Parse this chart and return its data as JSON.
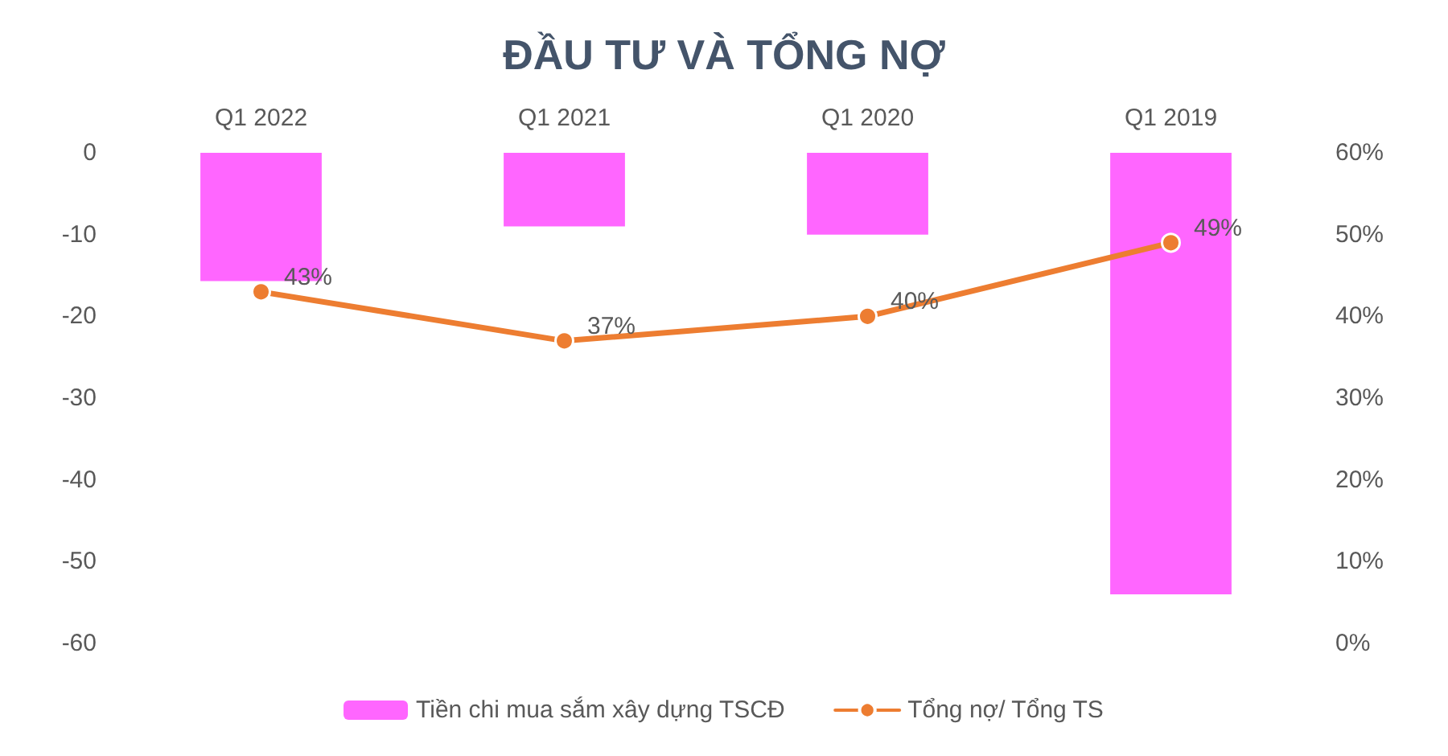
{
  "chart_data": {
    "type": "bar",
    "title": "ĐẦU TƯ VÀ TỔNG NỢ",
    "categories": [
      "Q1 2022",
      "Q1 2021",
      "Q1 2020",
      "Q1 2019"
    ],
    "series": [
      {
        "name": "Tiền chi mua sắm xây dựng TSCĐ",
        "color": "#ff66ff",
        "values": [
          -15.7,
          -9,
          -10,
          -54
        ]
      },
      {
        "name": "Tổng nợ/ Tổng TS",
        "type": "line",
        "axis": "y2",
        "color": "#ed7d31",
        "values": [
          43,
          37,
          40,
          49
        ],
        "value_labels": [
          "43%",
          "37%",
          "40%",
          "49%"
        ]
      }
    ],
    "ylim": [
      -60,
      0
    ],
    "yticks": [
      -60,
      -50,
      -40,
      -30,
      -20,
      -10,
      0
    ],
    "y2lim": [
      0,
      60
    ],
    "y2ticks": [
      {
        "value": 0,
        "label": "0%"
      },
      {
        "value": 10,
        "label": "10%"
      },
      {
        "value": 20,
        "label": "20%"
      },
      {
        "value": 30,
        "label": "30%"
      },
      {
        "value": 40,
        "label": "40%"
      },
      {
        "value": 50,
        "label": "50%"
      },
      {
        "value": 60,
        "label": "60%"
      }
    ],
    "grid": false,
    "legend": "bottom",
    "marker": "circle",
    "line_style": "solid"
  }
}
